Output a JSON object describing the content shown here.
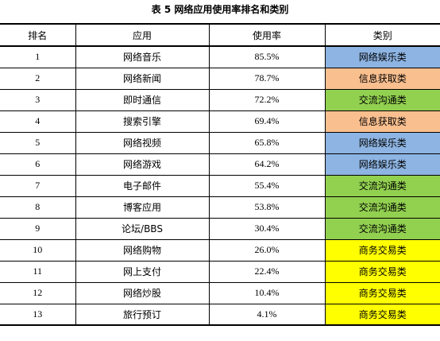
{
  "title": "表  5 网络应用使用率排名和类别",
  "table": {
    "headers": [
      "排名",
      "应用",
      "使用率",
      "类别"
    ],
    "category_colors": {
      "网络娱乐类": "#8db4e2",
      "信息获取类": "#fabf8f",
      "交流沟通类": "#92d050",
      "商务交易类": "#ffff00"
    },
    "rows": [
      {
        "rank": "1",
        "app": "网络音乐",
        "rate": "85.5%",
        "category": "网络娱乐类"
      },
      {
        "rank": "2",
        "app": "网络新闻",
        "rate": "78.7%",
        "category": "信息获取类"
      },
      {
        "rank": "3",
        "app": "即时通信",
        "rate": "72.2%",
        "category": "交流沟通类"
      },
      {
        "rank": "4",
        "app": "搜索引擎",
        "rate": "69.4%",
        "category": "信息获取类"
      },
      {
        "rank": "5",
        "app": "网络视频",
        "rate": "65.8%",
        "category": "网络娱乐类"
      },
      {
        "rank": "6",
        "app": "网络游戏",
        "rate": "64.2%",
        "category": "网络娱乐类"
      },
      {
        "rank": "7",
        "app": "电子邮件",
        "rate": "55.4%",
        "category": "交流沟通类"
      },
      {
        "rank": "8",
        "app": "博客应用",
        "rate": "53.8%",
        "category": "交流沟通类"
      },
      {
        "rank": "9",
        "app": "论坛/BBS",
        "rate": "30.4%",
        "category": "交流沟通类"
      },
      {
        "rank": "10",
        "app": "网络购物",
        "rate": "26.0%",
        "category": "商务交易类"
      },
      {
        "rank": "11",
        "app": "网上支付",
        "rate": "22.4%",
        "category": "商务交易类"
      },
      {
        "rank": "12",
        "app": "网络炒股",
        "rate": "10.4%",
        "category": "商务交易类"
      },
      {
        "rank": "13",
        "app": "旅行预订",
        "rate": "4.1%",
        "category": "商务交易类"
      }
    ]
  }
}
